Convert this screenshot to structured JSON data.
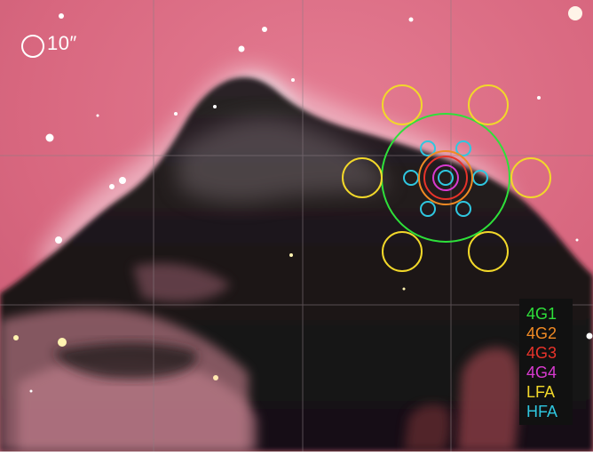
{
  "scale_bar": {
    "label": "10″",
    "color": "#ffffff"
  },
  "legend": {
    "items": [
      {
        "label": "4G1",
        "color": "#2ee03a"
      },
      {
        "label": "4G2",
        "color": "#f08a24"
      },
      {
        "label": "4G3",
        "color": "#e8332a"
      },
      {
        "label": "4G4",
        "color": "#d93ad0"
      },
      {
        "label": "LFA",
        "color": "#f2d82a"
      },
      {
        "label": "HFA",
        "color": "#2fc7e0"
      }
    ]
  },
  "image": {
    "subject": "dark-nebula",
    "sky_color": "#d86a82",
    "nebula_color": "#1c1618",
    "grid_color": "#7a6a70"
  }
}
